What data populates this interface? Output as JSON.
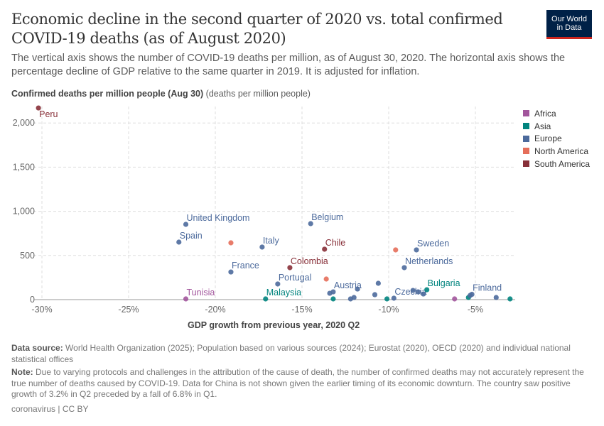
{
  "title": "Economic decline in the second quarter of 2020 vs. total confirmed COVID-19 deaths (as of August 2020)",
  "subtitle": "The vertical axis shows the number of COVID-19 deaths per million, as of August 30, 2020. The horizontal axis shows the percentage decline of GDP relative to the same quarter in 2019. It is adjusted for inflation.",
  "logo": {
    "line1": "Our World",
    "line2": "in Data"
  },
  "footer": {
    "source_label": "Data source:",
    "source": "World Health Organization (2025); Population based on various sources (2024); Eurostat (2020), OECD (2020) and individual national statistical offices",
    "note_label": "Note:",
    "note": "Due to varying protocols and challenges in the attribution of the cause of death, the number of confirmed deaths may not accurately represent the true number of deaths caused by COVID-19. Data for China is not shown given the earlier timing of its economic downturn. The country saw positive growth of 3.2% in Q2 preceded by a fall of 6.8% in Q1.",
    "license": "coronavirus | CC BY"
  },
  "chart_data": {
    "type": "scatter",
    "ylabel_bold": "Confirmed deaths per million people (Aug 30)",
    "ylabel_unit": "(deaths per million people)",
    "xlabel": "GDP growth from previous year, 2020 Q2",
    "xlim": [
      -30.5,
      -2.5
    ],
    "ylim": [
      0,
      2200
    ],
    "xticks": [
      -30,
      -25,
      -20,
      -15,
      -10,
      -5
    ],
    "xtick_labels": [
      "-30%",
      "-25%",
      "-20%",
      "-15%",
      "-10%",
      "-5%"
    ],
    "yticks": [
      0,
      500,
      1000,
      1500,
      2000
    ],
    "ytick_labels": [
      "0",
      "500",
      "1,000",
      "1,500",
      "2,000"
    ],
    "grid": true,
    "legend_position": "right",
    "legend": [
      {
        "name": "Africa",
        "color": "#a2559c"
      },
      {
        "name": "Asia",
        "color": "#00847e"
      },
      {
        "name": "Europe",
        "color": "#4c6a9c"
      },
      {
        "name": "North America",
        "color": "#e56e5a"
      },
      {
        "name": "South America",
        "color": "#883039"
      }
    ],
    "points": [
      {
        "label": "Peru",
        "region": "South America",
        "x": -30.2,
        "y": 2170
      },
      {
        "label": "United Kingdom",
        "region": "Europe",
        "x": -21.7,
        "y": 852
      },
      {
        "label": "Spain",
        "region": "Europe",
        "x": -22.1,
        "y": 651
      },
      {
        "label": "",
        "region": "North America",
        "x": -19.1,
        "y": 643
      },
      {
        "label": "Italy",
        "region": "Europe",
        "x": -17.3,
        "y": 595
      },
      {
        "label": "Belgium",
        "region": "Europe",
        "x": -14.5,
        "y": 860
      },
      {
        "label": "Chile",
        "region": "South America",
        "x": -13.7,
        "y": 571
      },
      {
        "label": "Colombia",
        "region": "South America",
        "x": -15.7,
        "y": 362
      },
      {
        "label": "France",
        "region": "Europe",
        "x": -19.1,
        "y": 313
      },
      {
        "label": "Portugal",
        "region": "Europe",
        "x": -16.4,
        "y": 177
      },
      {
        "label": "",
        "region": "North America",
        "x": -13.6,
        "y": 233
      },
      {
        "label": "",
        "region": "Europe",
        "x": -13.4,
        "y": 72
      },
      {
        "label": "Austria",
        "region": "Europe",
        "x": -13.2,
        "y": 88
      },
      {
        "label": "",
        "region": "Europe",
        "x": -11.8,
        "y": 120
      },
      {
        "label": "Tunisia",
        "region": "Africa",
        "x": -21.7,
        "y": 8
      },
      {
        "label": "Malaysia",
        "region": "Asia",
        "x": -17.1,
        "y": 8
      },
      {
        "label": "",
        "region": "Asia",
        "x": -13.2,
        "y": 8
      },
      {
        "label": "",
        "region": "Europe",
        "x": -12.2,
        "y": 8
      },
      {
        "label": "",
        "region": "Europe",
        "x": -12.0,
        "y": 24
      },
      {
        "label": "",
        "region": "Europe",
        "x": -10.8,
        "y": 56
      },
      {
        "label": "",
        "region": "Europe",
        "x": -10.6,
        "y": 185
      },
      {
        "label": "",
        "region": "Asia",
        "x": -10.1,
        "y": 8
      },
      {
        "label": "Czechia",
        "region": "Europe",
        "x": -9.7,
        "y": 16
      },
      {
        "label": "Sweden",
        "region": "Europe",
        "x": -8.4,
        "y": 563
      },
      {
        "label": "",
        "region": "North America",
        "x": -9.6,
        "y": 563
      },
      {
        "label": "Netherlands",
        "region": "Europe",
        "x": -9.1,
        "y": 362
      },
      {
        "label": "",
        "region": "Europe",
        "x": -8.6,
        "y": 104
      },
      {
        "label": "",
        "region": "Europe",
        "x": -8.3,
        "y": 88
      },
      {
        "label": "",
        "region": "Europe",
        "x": -8.0,
        "y": 64
      },
      {
        "label": "Bulgaria",
        "region": "Asia",
        "x": -7.8,
        "y": 112
      },
      {
        "label": "",
        "region": "Africa",
        "x": -6.2,
        "y": 8
      },
      {
        "label": "",
        "region": "Asia",
        "x": -5.4,
        "y": 24
      },
      {
        "label": "",
        "region": "Europe",
        "x": -5.3,
        "y": 48
      },
      {
        "label": "Finland",
        "region": "Europe",
        "x": -5.2,
        "y": 60
      },
      {
        "label": "",
        "region": "Europe",
        "x": -3.8,
        "y": 24
      },
      {
        "label": "",
        "region": "Asia",
        "x": -3.0,
        "y": 8
      }
    ]
  }
}
